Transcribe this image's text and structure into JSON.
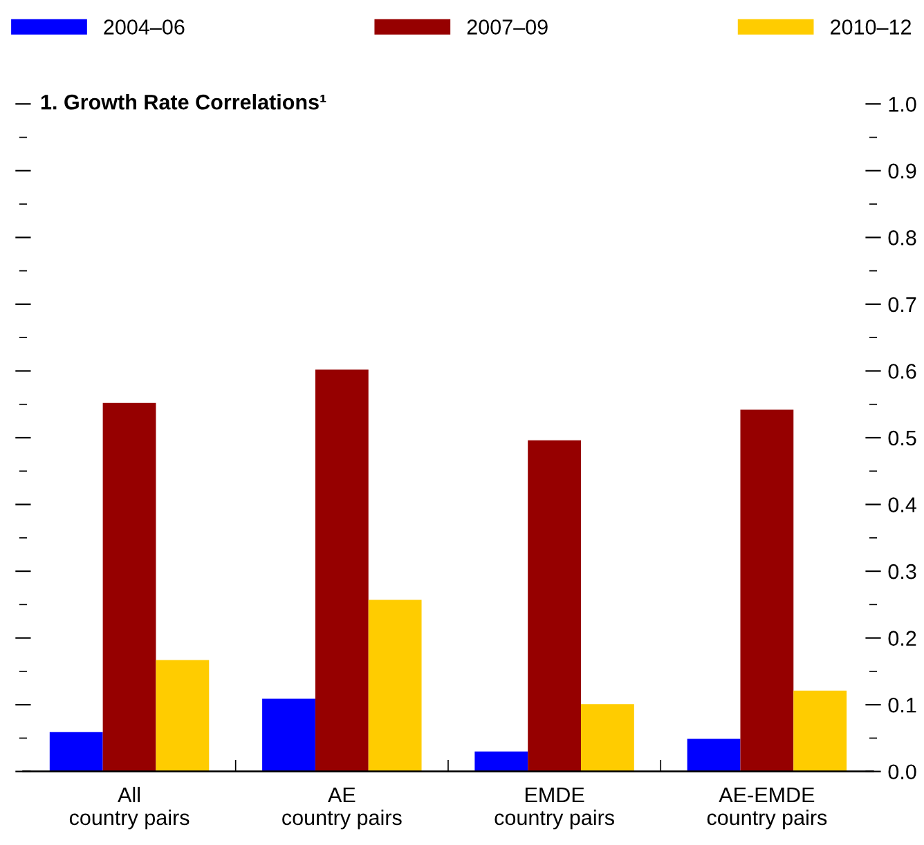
{
  "chart_data": {
    "type": "bar",
    "title": "1. Growth Rate Correlations¹",
    "categories": [
      "All\ncountry pairs",
      "AE\ncountry pairs",
      "EMDE\ncountry pairs",
      "AE-EMDE\ncountry pairs"
    ],
    "series": [
      {
        "name": "2004–06",
        "color": "#0000ff",
        "values": [
          0.059,
          0.109,
          0.03,
          0.049
        ]
      },
      {
        "name": "2007–09",
        "color": "#960000",
        "values": [
          0.552,
          0.602,
          0.496,
          0.542
        ]
      },
      {
        "name": "2010–12",
        "color": "#ffcc00",
        "values": [
          0.167,
          0.257,
          0.101,
          0.121
        ]
      }
    ],
    "ylim": [
      0,
      1.0
    ],
    "yticks": [
      {
        "value": 0,
        "label": "0.0"
      },
      0.1,
      0.2,
      0.3,
      0.4,
      0.5,
      0.6,
      0.7,
      0.8,
      0.9,
      {
        "value": 1,
        "label": "1.0"
      }
    ],
    "grid": false,
    "legend": "top"
  }
}
